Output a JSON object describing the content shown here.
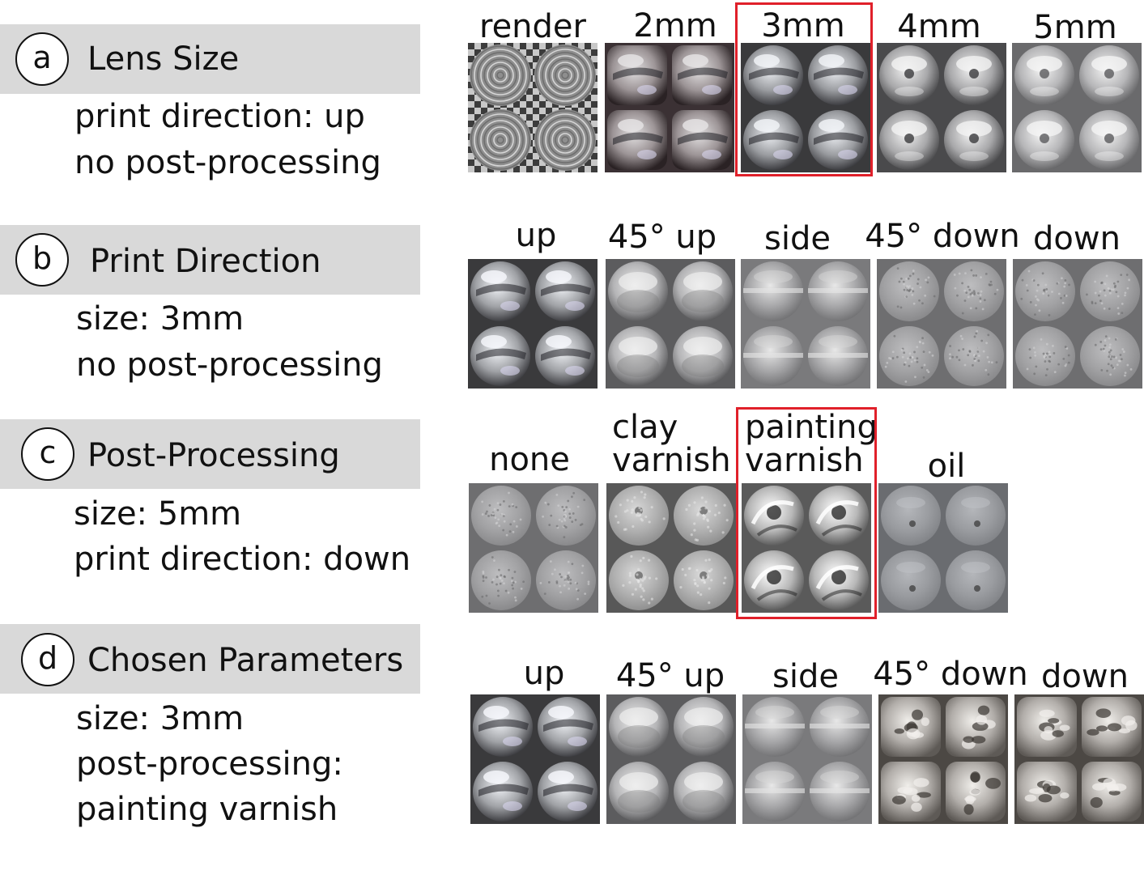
{
  "colors": {
    "band": "#d9d9d9",
    "highlight": "#e0202a"
  },
  "sections": [
    {
      "id": "a",
      "title": "Lens Size",
      "params": [
        "print direction: up",
        "no post-processing"
      ],
      "samples": [
        {
          "label": "render",
          "style": "render"
        },
        {
          "label": "2mm",
          "style": "2mm"
        },
        {
          "label": "3mm",
          "style": "3mm",
          "chosen": true
        },
        {
          "label": "4mm",
          "style": "4mm"
        },
        {
          "label": "5mm",
          "style": "5mm"
        }
      ]
    },
    {
      "id": "b",
      "title": "Print Direction",
      "params": [
        "size: 3mm",
        "no post-processing"
      ],
      "samples": [
        {
          "label": "up",
          "style": "glossy"
        },
        {
          "label": "45° up",
          "style": "semi"
        },
        {
          "label": "side",
          "style": "side"
        },
        {
          "label": "45° down",
          "style": "frosted"
        },
        {
          "label": "down",
          "style": "frosted"
        }
      ]
    },
    {
      "id": "c",
      "title": "Post-Processing",
      "params": [
        "size: 5mm",
        "print direction: down"
      ],
      "samples": [
        {
          "label": "none",
          "style": "frosted"
        },
        {
          "label": "clay varnish",
          "lines": [
            "clay",
            "varnish"
          ],
          "style": "clay"
        },
        {
          "label": "painting varnish",
          "lines": [
            "painting",
            "varnish"
          ],
          "style": "painting",
          "chosen": true
        },
        {
          "label": "oil",
          "style": "oil"
        }
      ]
    },
    {
      "id": "d",
      "title": "Chosen Parameters",
      "params": [
        "size: 3mm",
        "post-processing:",
        "painting varnish"
      ],
      "samples": [
        {
          "label": "up",
          "style": "glossy"
        },
        {
          "label": "45° up",
          "style": "semi"
        },
        {
          "label": "side",
          "style": "side"
        },
        {
          "label": "45° down",
          "style": "bumpy"
        },
        {
          "label": "down",
          "style": "bumpy"
        }
      ]
    }
  ]
}
